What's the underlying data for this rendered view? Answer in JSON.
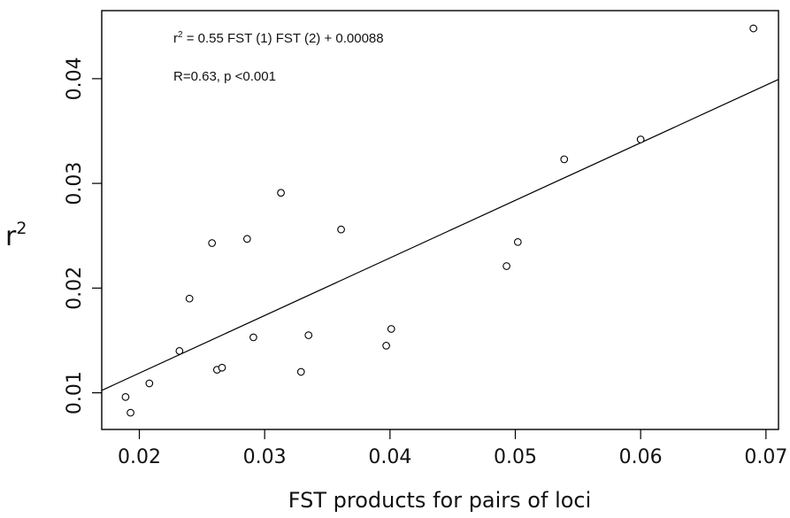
{
  "chart_data": {
    "type": "scatter",
    "xlabel": "FST products for pairs of loci",
    "ylabel_base": "r",
    "ylabel_sup": "2",
    "xlim": [
      0.017,
      0.071
    ],
    "ylim": [
      0.0065,
      0.0465
    ],
    "x_ticks": [
      "0.02",
      "0.03",
      "0.04",
      "0.05",
      "0.06",
      "0.07"
    ],
    "y_ticks": [
      "0.01",
      "0.02",
      "0.03",
      "0.04"
    ],
    "grid": false,
    "annotations": {
      "equation_pre": "r",
      "equation_sup": "2",
      "equation_post": " = 0.55 FST (1) FST (2) + 0.00088",
      "stats": "R=0.63, p <0.001"
    },
    "fit_line": {
      "slope": 0.55,
      "intercept": 0.00088
    },
    "points": [
      {
        "x": 0.0189,
        "y": 0.0096
      },
      {
        "x": 0.0193,
        "y": 0.0081
      },
      {
        "x": 0.0208,
        "y": 0.0109
      },
      {
        "x": 0.0232,
        "y": 0.014
      },
      {
        "x": 0.024,
        "y": 0.019
      },
      {
        "x": 0.0258,
        "y": 0.0243
      },
      {
        "x": 0.0262,
        "y": 0.0122
      },
      {
        "x": 0.0266,
        "y": 0.0124
      },
      {
        "x": 0.0286,
        "y": 0.0247
      },
      {
        "x": 0.0291,
        "y": 0.0153
      },
      {
        "x": 0.0313,
        "y": 0.0291
      },
      {
        "x": 0.0329,
        "y": 0.012
      },
      {
        "x": 0.0335,
        "y": 0.0155
      },
      {
        "x": 0.0361,
        "y": 0.0256
      },
      {
        "x": 0.0397,
        "y": 0.0145
      },
      {
        "x": 0.0401,
        "y": 0.0161
      },
      {
        "x": 0.0493,
        "y": 0.0221
      },
      {
        "x": 0.0502,
        "y": 0.0244
      },
      {
        "x": 0.0539,
        "y": 0.0323
      },
      {
        "x": 0.06,
        "y": 0.0342
      },
      {
        "x": 0.069,
        "y": 0.0448
      }
    ]
  }
}
